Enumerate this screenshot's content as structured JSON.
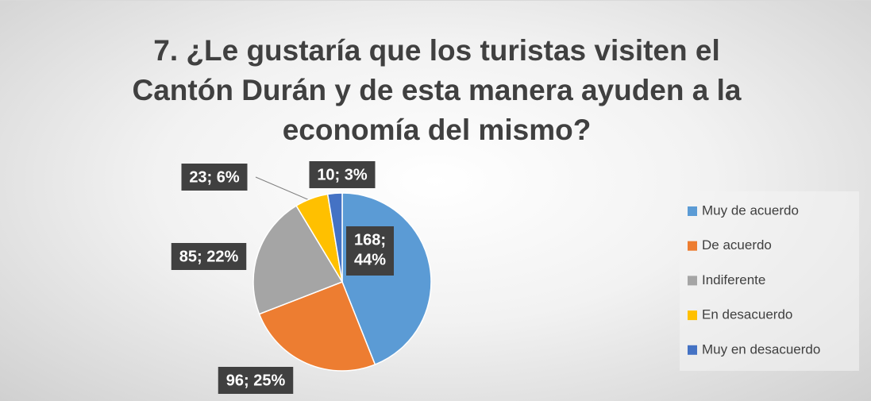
{
  "chart_data": {
    "type": "pie",
    "title": "7. ¿Le gustaría que los turistas visiten el Cantón Durán y de esta manera ayuden a la economía del mismo?",
    "categories": [
      "Muy de acuerdo",
      "De acuerdo",
      "Indiferente",
      "En desacuerdo",
      "Muy en desacuerdo"
    ],
    "values": [
      168,
      96,
      85,
      23,
      10
    ],
    "value_labels": [
      "168; 44%",
      "96; 25%",
      "85; 22%",
      "23; 6%",
      "10; 3%"
    ],
    "colors": [
      "#5b9bd5",
      "#ed7d31",
      "#a5a5a5",
      "#ffc000",
      "#4472c4"
    ],
    "legend": "right"
  }
}
